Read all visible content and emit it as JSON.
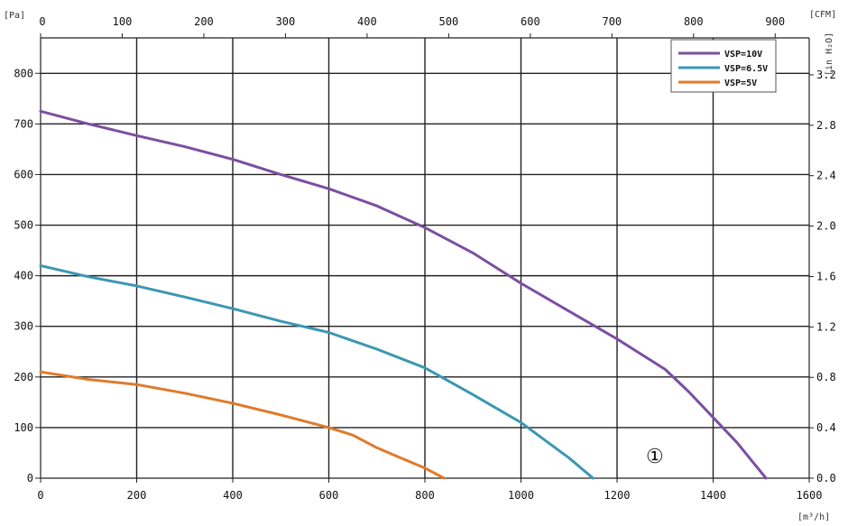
{
  "chart_data": {
    "type": "line",
    "title": "",
    "xlabel": "[m³/h]",
    "ylabel": "[Pa]",
    "x2label": "[CFM]",
    "y2label": "[in H₂O]",
    "xlim": [
      0,
      1600
    ],
    "ylim": [
      0,
      870
    ],
    "x2lim": [
      0,
      941.7
    ],
    "y2lim": [
      0,
      3.493
    ],
    "grid": true,
    "legend_position": "top-right",
    "xticks": [
      "0",
      "200",
      "400",
      "600",
      "800",
      "1000",
      "1200",
      "1400",
      "1600"
    ],
    "yticks": [
      "0",
      "100",
      "200",
      "300",
      "400",
      "500",
      "600",
      "700",
      "800"
    ],
    "x2ticks": [
      "0",
      "100",
      "200",
      "300",
      "400",
      "500",
      "600",
      "700",
      "800",
      "900"
    ],
    "y2ticks": [
      "0.0",
      "0.4",
      "0.8",
      "1.2",
      "1.6",
      "2.0",
      "2.4",
      "2.8",
      "3.2"
    ],
    "annotation": "①",
    "series": [
      {
        "name": "VSP=10V",
        "color": "#7b4fa0",
        "x": [
          0,
          100,
          200,
          300,
          400,
          500,
          600,
          700,
          800,
          900,
          1000,
          1100,
          1200,
          1300,
          1350,
          1400,
          1450,
          1480,
          1510
        ],
        "y": [
          725,
          700,
          677,
          655,
          630,
          600,
          572,
          538,
          495,
          445,
          385,
          330,
          275,
          215,
          170,
          120,
          70,
          35,
          0
        ]
      },
      {
        "name": "VSP=6.5V",
        "color": "#3b97b3",
        "x": [
          0,
          100,
          200,
          300,
          400,
          500,
          600,
          700,
          800,
          900,
          1000,
          1050,
          1100,
          1150
        ],
        "y": [
          420,
          398,
          380,
          358,
          335,
          310,
          288,
          255,
          218,
          165,
          110,
          75,
          40,
          0
        ]
      },
      {
        "name": "VSP=5V",
        "color": "#e07a2a",
        "x": [
          0,
          100,
          200,
          300,
          400,
          500,
          600,
          650,
          700,
          750,
          800,
          840
        ],
        "y": [
          210,
          195,
          185,
          168,
          148,
          125,
          100,
          85,
          60,
          40,
          20,
          0
        ]
      }
    ]
  }
}
